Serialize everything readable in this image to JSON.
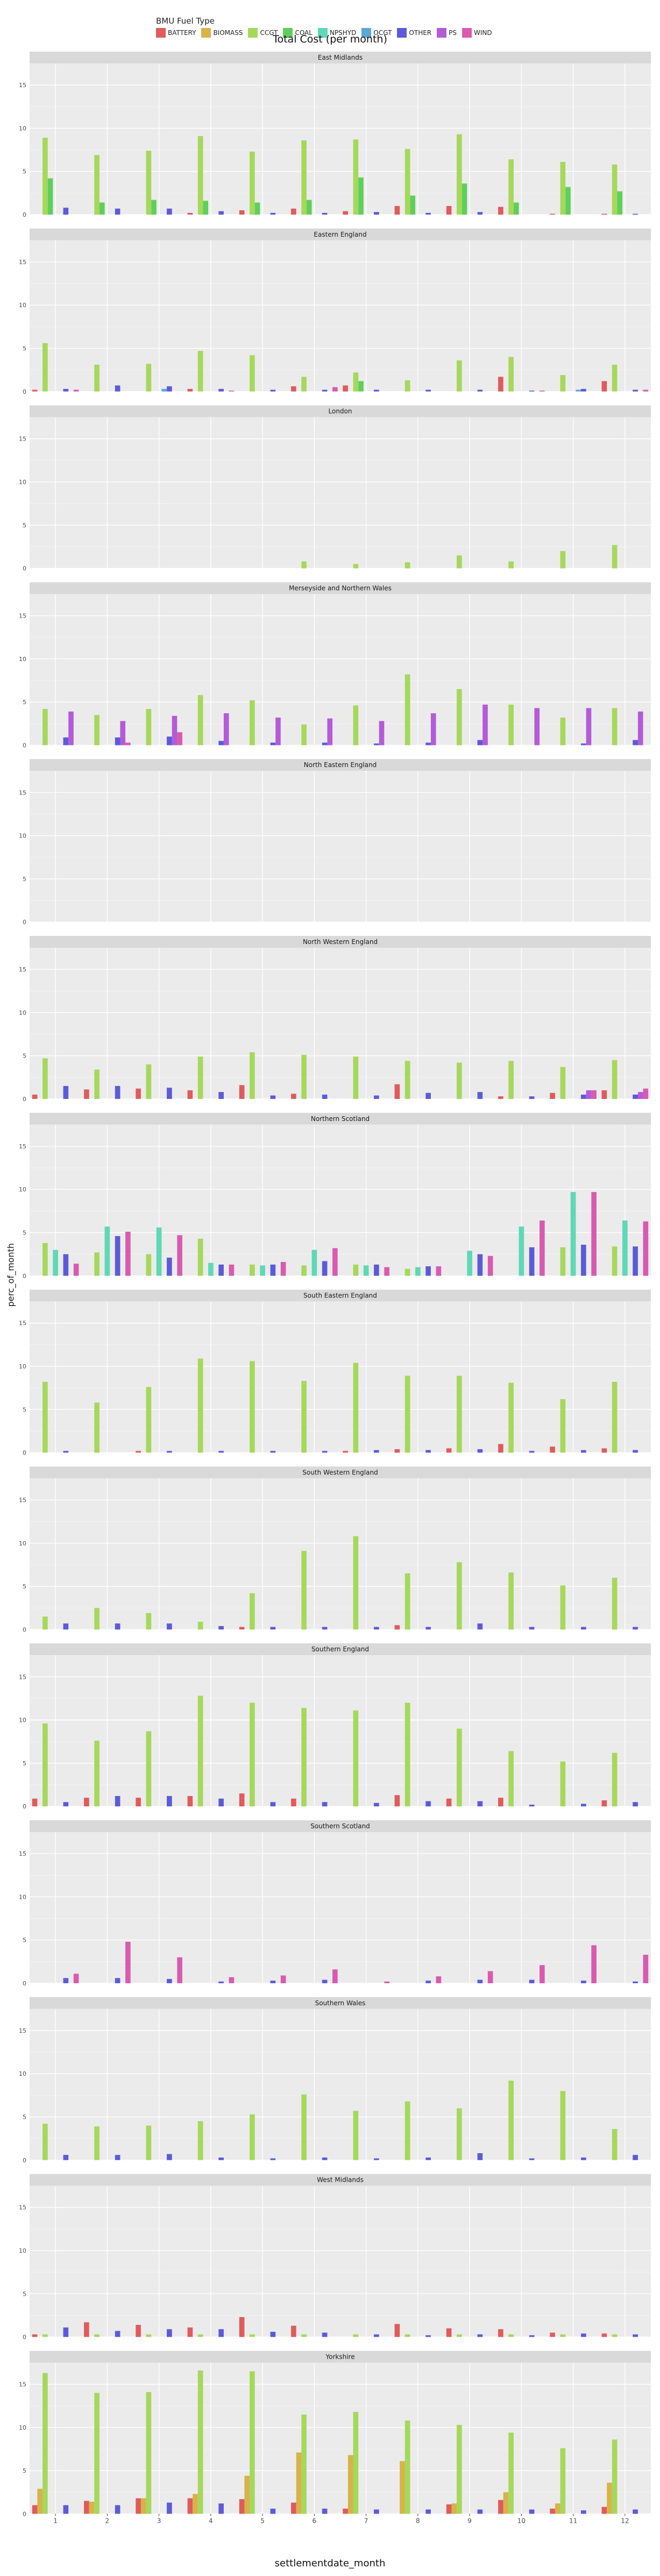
{
  "legend": {
    "title": "BMU Fuel Type",
    "items": [
      {
        "name": "BATTERY",
        "color": "#E05B5B"
      },
      {
        "name": "BIOMASS",
        "color": "#D8B24A"
      },
      {
        "name": "CCGT",
        "color": "#A6D85B"
      },
      {
        "name": "COAL",
        "color": "#5FCF5B"
      },
      {
        "name": "NPSHYD",
        "color": "#5ED8B5"
      },
      {
        "name": "OCGT",
        "color": "#5AA7D8"
      },
      {
        "name": "OTHER",
        "color": "#5B5BD8"
      },
      {
        "name": "PS",
        "color": "#B45BD8"
      },
      {
        "name": "WIND",
        "color": "#D85BB0"
      }
    ]
  },
  "chart_data": {
    "type": "bar",
    "title": "Total Cost (per month)",
    "xlabel": "settlementdate_month",
    "ylabel": "perc_of_month",
    "ylim": [
      0,
      17.5
    ],
    "yticks": [
      "0",
      "5",
      "10",
      "15"
    ],
    "categories": [
      "1",
      "2",
      "3",
      "4",
      "5",
      "6",
      "7",
      "8",
      "9",
      "10",
      "11",
      "12"
    ],
    "fuels": [
      "BATTERY",
      "BIOMASS",
      "CCGT",
      "COAL",
      "NPSHYD",
      "OCGT",
      "OTHER",
      "PS",
      "WIND"
    ],
    "panels": [
      {
        "name": "East Midlands",
        "series": {
          "CCGT": [
            8.9,
            6.9,
            7.4,
            9.1,
            7.3,
            8.6,
            8.7,
            7.6,
            9.3,
            6.4,
            6.1,
            5.8
          ],
          "COAL": [
            4.2,
            1.4,
            1.7,
            1.6,
            1.4,
            1.7,
            4.3,
            2.2,
            3.6,
            1.4,
            3.2,
            2.7
          ],
          "OTHER": [
            0.8,
            0.7,
            0.7,
            0.4,
            0.2,
            0.2,
            0.3,
            0.2,
            0.3,
            0.0,
            0.0,
            0.1
          ],
          "BATTERY": [
            0.0,
            0.0,
            0.0,
            0.2,
            0.5,
            0.7,
            0.4,
            1.0,
            1.0,
            0.9,
            0.1,
            0.1
          ]
        }
      },
      {
        "name": "Eastern England",
        "series": {
          "CCGT": [
            5.6,
            3.1,
            3.2,
            4.7,
            4.2,
            1.7,
            2.2,
            1.3,
            3.6,
            4.0,
            1.9,
            3.1
          ],
          "OTHER": [
            0.3,
            0.7,
            0.6,
            0.3,
            0.2,
            0.2,
            0.2,
            0.2,
            0.2,
            0.1,
            0.3,
            0.2
          ],
          "BATTERY": [
            0.2,
            0.0,
            0.0,
            0.3,
            0.0,
            0.6,
            0.7,
            0.0,
            0.0,
            1.7,
            0.0,
            1.2
          ],
          "OCGT": [
            0.0,
            0.0,
            0.3,
            0.0,
            0.0,
            0.0,
            0.0,
            0.0,
            0.0,
            0.0,
            0.2,
            0.0
          ],
          "WIND": [
            0.2,
            0.0,
            0.0,
            0.1,
            0.0,
            0.5,
            0.0,
            0.0,
            0.0,
            0.1,
            0.0,
            0.2
          ],
          "COAL": [
            0.0,
            0.0,
            0.0,
            0.0,
            0.0,
            0.0,
            1.2,
            0.0,
            0.0,
            0.0,
            0.0,
            0.0
          ]
        }
      },
      {
        "name": "London",
        "series": {
          "CCGT": [
            0.0,
            0.0,
            0.0,
            0.0,
            0.0,
            0.8,
            0.5,
            0.7,
            1.5,
            0.8,
            2.0,
            2.7
          ]
        }
      },
      {
        "name": "Merseyside and Northern Wales",
        "series": {
          "CCGT": [
            4.2,
            3.5,
            4.2,
            5.8,
            5.2,
            2.4,
            4.6,
            8.2,
            6.5,
            4.7,
            3.2,
            4.3
          ],
          "PS": [
            3.9,
            2.8,
            3.4,
            3.7,
            3.2,
            3.1,
            2.8,
            3.7,
            4.7,
            4.3,
            4.3,
            3.9
          ],
          "OTHER": [
            0.9,
            0.9,
            1.0,
            0.5,
            0.3,
            0.3,
            0.2,
            0.3,
            0.6,
            0.0,
            0.2,
            0.6
          ],
          "WIND": [
            0.0,
            0.3,
            1.5,
            0.0,
            0.0,
            0.0,
            0.0,
            0.0,
            0.0,
            0.0,
            0.0,
            0.0
          ]
        }
      },
      {
        "name": "North Eastern England",
        "series": {
          "OTHER": [
            0.0,
            0.0,
            0.0,
            0.0,
            0.0,
            0.0,
            0.0,
            0.0,
            0.0,
            0.0,
            0.0,
            0.0
          ]
        }
      },
      {
        "name": "North Western England",
        "series": {
          "CCGT": [
            4.7,
            3.4,
            4.0,
            4.9,
            5.4,
            5.1,
            4.9,
            4.4,
            4.2,
            4.4,
            3.7,
            4.5
          ],
          "BATTERY": [
            0.5,
            1.1,
            1.2,
            1.0,
            1.6,
            0.6,
            0.0,
            1.7,
            0.0,
            0.3,
            0.7,
            1.0
          ],
          "OTHER": [
            1.5,
            1.5,
            1.3,
            0.8,
            0.4,
            0.5,
            0.4,
            0.7,
            0.8,
            0.3,
            0.5,
            0.5
          ],
          "PS": [
            0.0,
            0.0,
            0.0,
            0.0,
            0.0,
            0.0,
            0.0,
            0.0,
            0.0,
            0.0,
            1.0,
            0.8
          ],
          "WIND": [
            0.0,
            0.0,
            0.0,
            0.0,
            0.0,
            0.0,
            0.0,
            0.0,
            0.0,
            0.0,
            1.0,
            1.2
          ]
        }
      },
      {
        "name": "Northern Scotland",
        "series": {
          "CCGT": [
            3.8,
            2.7,
            2.5,
            4.3,
            1.3,
            1.2,
            1.3,
            0.8,
            0.0,
            0.0,
            3.3,
            3.4
          ],
          "NPSHYD": [
            3.0,
            5.7,
            5.6,
            1.5,
            1.2,
            3.0,
            1.2,
            1.0,
            2.9,
            5.7,
            9.7,
            6.4
          ],
          "OTHER": [
            2.5,
            4.6,
            2.1,
            1.3,
            1.3,
            1.7,
            1.3,
            1.1,
            2.5,
            3.3,
            3.6,
            3.4
          ],
          "WIND": [
            1.4,
            5.1,
            4.7,
            1.3,
            1.6,
            3.2,
            1.0,
            1.1,
            2.3,
            6.4,
            9.7,
            6.3
          ]
        }
      },
      {
        "name": "South Eastern England",
        "series": {
          "CCGT": [
            8.2,
            5.8,
            7.6,
            10.9,
            10.6,
            8.3,
            10.4,
            8.9,
            8.9,
            8.1,
            6.2,
            8.2
          ],
          "BATTERY": [
            0.0,
            0.0,
            0.2,
            0.0,
            0.0,
            0.0,
            0.2,
            0.4,
            0.5,
            1.0,
            0.7,
            0.5
          ],
          "OTHER": [
            0.2,
            0.0,
            0.2,
            0.2,
            0.2,
            0.2,
            0.3,
            0.3,
            0.4,
            0.2,
            0.3,
            0.3
          ]
        }
      },
      {
        "name": "South Western England",
        "series": {
          "CCGT": [
            1.5,
            2.5,
            1.9,
            0.9,
            4.2,
            9.1,
            10.8,
            6.5,
            7.8,
            6.6,
            5.1,
            6.0
          ],
          "OTHER": [
            0.7,
            0.7,
            0.7,
            0.4,
            0.3,
            0.3,
            0.3,
            0.3,
            0.7,
            0.3,
            0.3,
            0.3
          ],
          "BATTERY": [
            0.0,
            0.0,
            0.0,
            0.0,
            0.3,
            0.0,
            0.0,
            0.5,
            0.0,
            0.0,
            0.0,
            0.0
          ]
        }
      },
      {
        "name": "Southern England",
        "series": {
          "CCGT": [
            9.6,
            7.6,
            8.7,
            12.8,
            12.0,
            11.4,
            11.1,
            12.0,
            9.0,
            6.4,
            5.2,
            6.2
          ],
          "BATTERY": [
            0.9,
            1.0,
            1.0,
            1.2,
            1.5,
            0.9,
            0.0,
            1.3,
            0.9,
            1.0,
            0.0,
            0.7
          ],
          "OTHER": [
            0.5,
            1.2,
            1.2,
            0.9,
            0.5,
            0.5,
            0.4,
            0.6,
            0.6,
            0.2,
            0.3,
            0.5
          ]
        }
      },
      {
        "name": "Southern Scotland",
        "series": {
          "WIND": [
            1.1,
            4.8,
            3.0,
            0.7,
            0.9,
            1.6,
            0.2,
            0.8,
            1.4,
            2.1,
            4.4,
            3.3
          ],
          "OTHER": [
            0.6,
            0.6,
            0.5,
            0.2,
            0.3,
            0.4,
            0.0,
            0.3,
            0.4,
            0.4,
            0.3,
            0.2
          ]
        }
      },
      {
        "name": "Southern Wales",
        "series": {
          "CCGT": [
            4.2,
            3.9,
            4.0,
            4.5,
            5.3,
            7.6,
            5.7,
            6.8,
            6.0,
            9.2,
            8.0,
            3.6
          ],
          "OTHER": [
            0.6,
            0.6,
            0.7,
            0.3,
            0.2,
            0.3,
            0.2,
            0.3,
            0.8,
            0.2,
            0.3,
            0.6
          ]
        }
      },
      {
        "name": "West Midlands",
        "series": {
          "BATTERY": [
            0.3,
            1.7,
            1.4,
            1.1,
            2.3,
            1.3,
            0.0,
            1.5,
            1.0,
            0.9,
            0.5,
            0.4
          ],
          "OTHER": [
            1.1,
            0.7,
            0.9,
            0.9,
            0.6,
            0.5,
            0.3,
            0.2,
            0.3,
            0.2,
            0.4,
            0.3
          ],
          "CCGT": [
            0.3,
            0.3,
            0.3,
            0.3,
            0.3,
            0.3,
            0.3,
            0.3,
            0.3,
            0.3,
            0.3,
            0.3
          ]
        }
      },
      {
        "name": "Yorkshire",
        "series": {
          "CCGT": [
            16.3,
            14.0,
            14.1,
            16.6,
            16.5,
            11.5,
            11.8,
            10.8,
            10.3,
            9.4,
            7.6,
            8.6
          ],
          "BIOMASS": [
            2.9,
            1.4,
            1.8,
            2.3,
            4.4,
            7.1,
            6.8,
            6.1,
            1.2,
            2.5,
            1.2,
            3.6
          ],
          "BATTERY": [
            1.0,
            1.5,
            1.8,
            1.8,
            1.7,
            1.3,
            0.6,
            0.0,
            1.1,
            1.6,
            0.6,
            0.8
          ],
          "OTHER": [
            1.0,
            1.0,
            1.3,
            1.2,
            0.6,
            0.6,
            0.5,
            0.5,
            0.5,
            0.5,
            0.4,
            0.5
          ]
        }
      }
    ]
  }
}
